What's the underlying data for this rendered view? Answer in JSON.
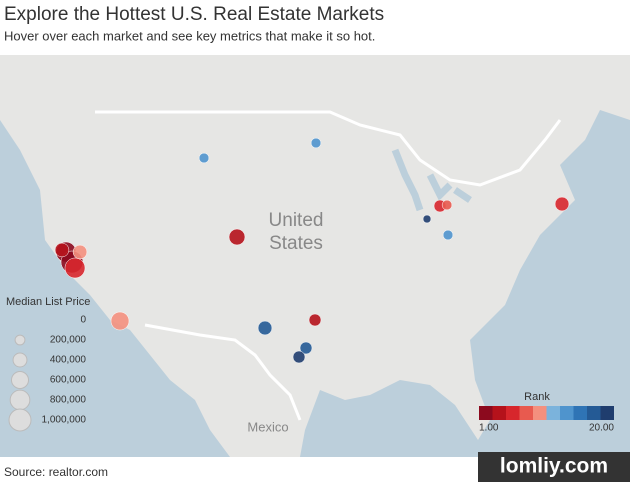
{
  "header": {
    "title": "Explore the Hottest U.S. Real Estate Markets",
    "subtitle": "Hover over each market and see key metrics that make it so hot."
  },
  "map": {
    "labels": [
      "United",
      "States",
      "Mexico"
    ]
  },
  "markets": [
    {
      "rank": 2,
      "price": 830000
    },
    {
      "rank": 1,
      "price": 1000000
    },
    {
      "rank": 5,
      "price": 830000
    },
    {
      "rank": 10,
      "price": 400000
    },
    {
      "rank": 3,
      "price": 400000
    },
    {
      "rank": 10,
      "price": 670000
    },
    {
      "rank": 3,
      "price": 530000
    },
    {
      "rank": 13,
      "price": 200000
    },
    {
      "rank": 13,
      "price": 200000
    },
    {
      "rank": 4,
      "price": 300000
    },
    {
      "rank": 17,
      "price": 400000
    },
    {
      "rank": 18,
      "price": 300000
    },
    {
      "rank": 19,
      "price": 300000
    },
    {
      "rank": 6,
      "price": 300000
    },
    {
      "rank": 7,
      "price": 200000
    },
    {
      "rank": 19,
      "price": 130000
    },
    {
      "rank": 14,
      "price": 200000
    },
    {
      "rank": 6,
      "price": 400000
    }
  ],
  "size_legend": {
    "title": "Median List Price",
    "values": [
      0,
      {
        "value": 200000,
        "label": "200,000"
      },
      {
        "value": 400000,
        "label": "400,000"
      },
      {
        "value": 600000,
        "label": "600,000"
      },
      {
        "value": 800000,
        "label": "800,000"
      },
      {
        "value": 1000000,
        "label": "1,000,000"
      }
    ]
  },
  "rank_legend": {
    "title": "Rank",
    "range": [
      {
        "value": 1,
        "label": "1.00"
      },
      {
        "value": 20,
        "label": "20.00"
      }
    ],
    "colors": [
      "#8c0a1e",
      "#b5121b",
      "#d7262c",
      "#e85a4f",
      "#f4907e",
      "#7bb3dc",
      "#4f94cd",
      "#2f74b5",
      "#245a95",
      "#1f3d6e"
    ]
  },
  "footer": {
    "source": "Source: realtor.com",
    "watermark": "lomliy.com"
  }
}
